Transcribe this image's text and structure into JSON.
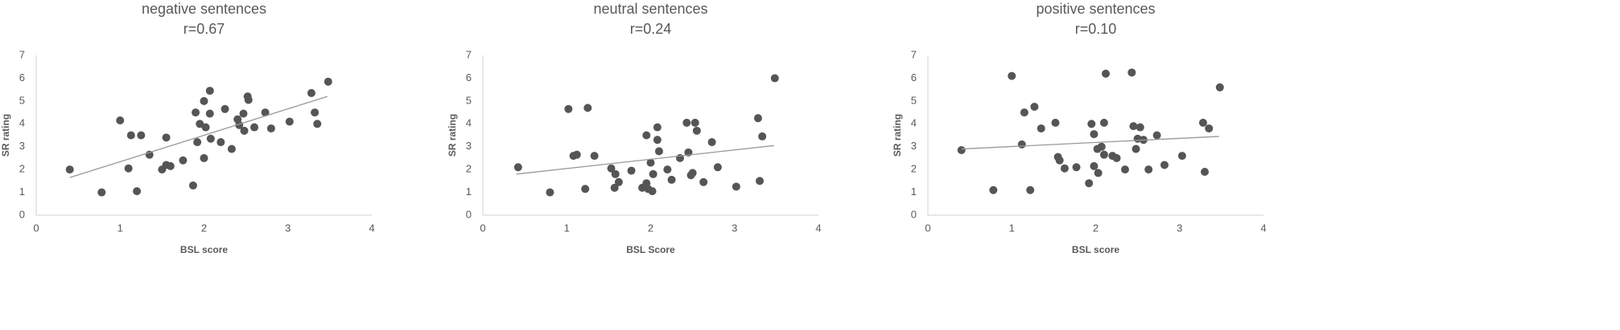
{
  "chart_data": [
    {
      "type": "scatter",
      "title": "negative sentences",
      "subtitle": "r=0.67",
      "x_label": "BSL score",
      "y_label": "SR rating",
      "xlim": [
        0,
        4
      ],
      "ylim": [
        0,
        7
      ],
      "xticks": [
        0,
        1,
        2,
        3,
        4
      ],
      "yticks": [
        0,
        1,
        2,
        3,
        4,
        5,
        6,
        7
      ],
      "color": "#555555",
      "x": [
        0.4,
        0.78,
        1.0,
        1.1,
        1.13,
        1.2,
        1.25,
        1.35,
        1.5,
        1.55,
        1.55,
        1.6,
        1.75,
        1.87,
        1.9,
        1.92,
        1.95,
        2.0,
        2.0,
        2.02,
        2.07,
        2.07,
        2.08,
        2.2,
        2.25,
        2.33,
        2.4,
        2.42,
        2.47,
        2.48,
        2.52,
        2.53,
        2.6,
        2.73,
        2.8,
        3.02,
        3.28,
        3.32,
        3.35,
        3.48
      ],
      "values": [
        2.0,
        1.0,
        4.15,
        2.05,
        3.5,
        1.05,
        3.5,
        2.65,
        2.0,
        3.4,
        2.2,
        2.15,
        2.4,
        1.3,
        4.5,
        3.2,
        4.0,
        5.0,
        2.5,
        3.85,
        5.45,
        4.45,
        3.35,
        3.2,
        4.65,
        2.9,
        4.2,
        3.95,
        4.45,
        3.7,
        5.2,
        5.05,
        3.85,
        4.5,
        3.8,
        4.1,
        5.35,
        4.5,
        4.0,
        5.85
      ],
      "trendline": {
        "x": [
          0.4,
          3.47
        ],
        "values": [
          1.65,
          5.2
        ],
        "color": "#999999"
      }
    },
    {
      "type": "scatter",
      "title": "neutral sentences",
      "subtitle": "r=0.24",
      "x_label": "BSL Score",
      "y_label": "SR rating",
      "xlim": [
        0,
        4
      ],
      "ylim": [
        0,
        7
      ],
      "xticks": [
        0,
        1,
        2,
        3,
        4
      ],
      "yticks": [
        0,
        1,
        2,
        3,
        4,
        5,
        6,
        7
      ],
      "color": "#555555",
      "x": [
        0.42,
        0.8,
        1.02,
        1.08,
        1.12,
        1.22,
        1.25,
        1.33,
        1.53,
        1.57,
        1.58,
        1.62,
        1.77,
        1.9,
        1.95,
        1.95,
        1.97,
        2.0,
        2.02,
        2.03,
        2.08,
        2.08,
        2.1,
        2.2,
        2.25,
        2.35,
        2.43,
        2.45,
        2.48,
        2.5,
        2.53,
        2.55,
        2.63,
        2.73,
        2.8,
        3.02,
        3.28,
        3.3,
        3.33,
        3.48
      ],
      "values": [
        2.1,
        1.0,
        4.65,
        2.6,
        2.65,
        1.15,
        4.7,
        2.6,
        2.05,
        1.2,
        1.8,
        1.45,
        1.95,
        1.2,
        3.5,
        1.4,
        1.15,
        2.3,
        1.05,
        1.8,
        3.85,
        3.3,
        2.8,
        2.0,
        1.55,
        2.5,
        4.05,
        2.75,
        1.75,
        1.85,
        4.05,
        3.7,
        1.45,
        3.2,
        2.1,
        1.25,
        4.25,
        1.5,
        3.45,
        6.0
      ],
      "trendline": {
        "x": [
          0.4,
          3.47
        ],
        "values": [
          1.8,
          3.05
        ],
        "color": "#999999"
      }
    },
    {
      "type": "scatter",
      "title": "positive sentences",
      "subtitle": "r=0.10",
      "x_label": "BSL score",
      "y_label": "SR rating",
      "xlim": [
        0,
        4
      ],
      "ylim": [
        0,
        7
      ],
      "xticks": [
        0,
        1,
        2,
        3,
        4
      ],
      "yticks": [
        0,
        1,
        2,
        3,
        4,
        5,
        6,
        7
      ],
      "color": "#555555",
      "x": [
        0.4,
        0.78,
        1.0,
        1.12,
        1.15,
        1.22,
        1.27,
        1.35,
        1.52,
        1.55,
        1.57,
        1.63,
        1.77,
        1.92,
        1.95,
        1.98,
        1.98,
        2.02,
        2.03,
        2.07,
        2.1,
        2.1,
        2.12,
        2.2,
        2.25,
        2.35,
        2.43,
        2.45,
        2.48,
        2.5,
        2.53,
        2.57,
        2.63,
        2.73,
        2.82,
        3.03,
        3.28,
        3.3,
        3.35,
        3.48
      ],
      "values": [
        2.85,
        1.1,
        6.1,
        3.1,
        4.5,
        1.1,
        4.75,
        3.8,
        4.05,
        2.55,
        2.4,
        2.05,
        2.1,
        1.4,
        4.0,
        3.55,
        2.15,
        2.9,
        1.85,
        3.0,
        4.05,
        2.65,
        6.2,
        2.6,
        2.5,
        2.0,
        6.25,
        3.9,
        2.9,
        3.35,
        3.85,
        3.3,
        2.0,
        3.5,
        2.2,
        2.6,
        4.05,
        1.9,
        3.8,
        5.6
      ],
      "trendline": {
        "x": [
          0.4,
          3.47
        ],
        "values": [
          2.9,
          3.45
        ],
        "color": "#999999"
      }
    }
  ]
}
